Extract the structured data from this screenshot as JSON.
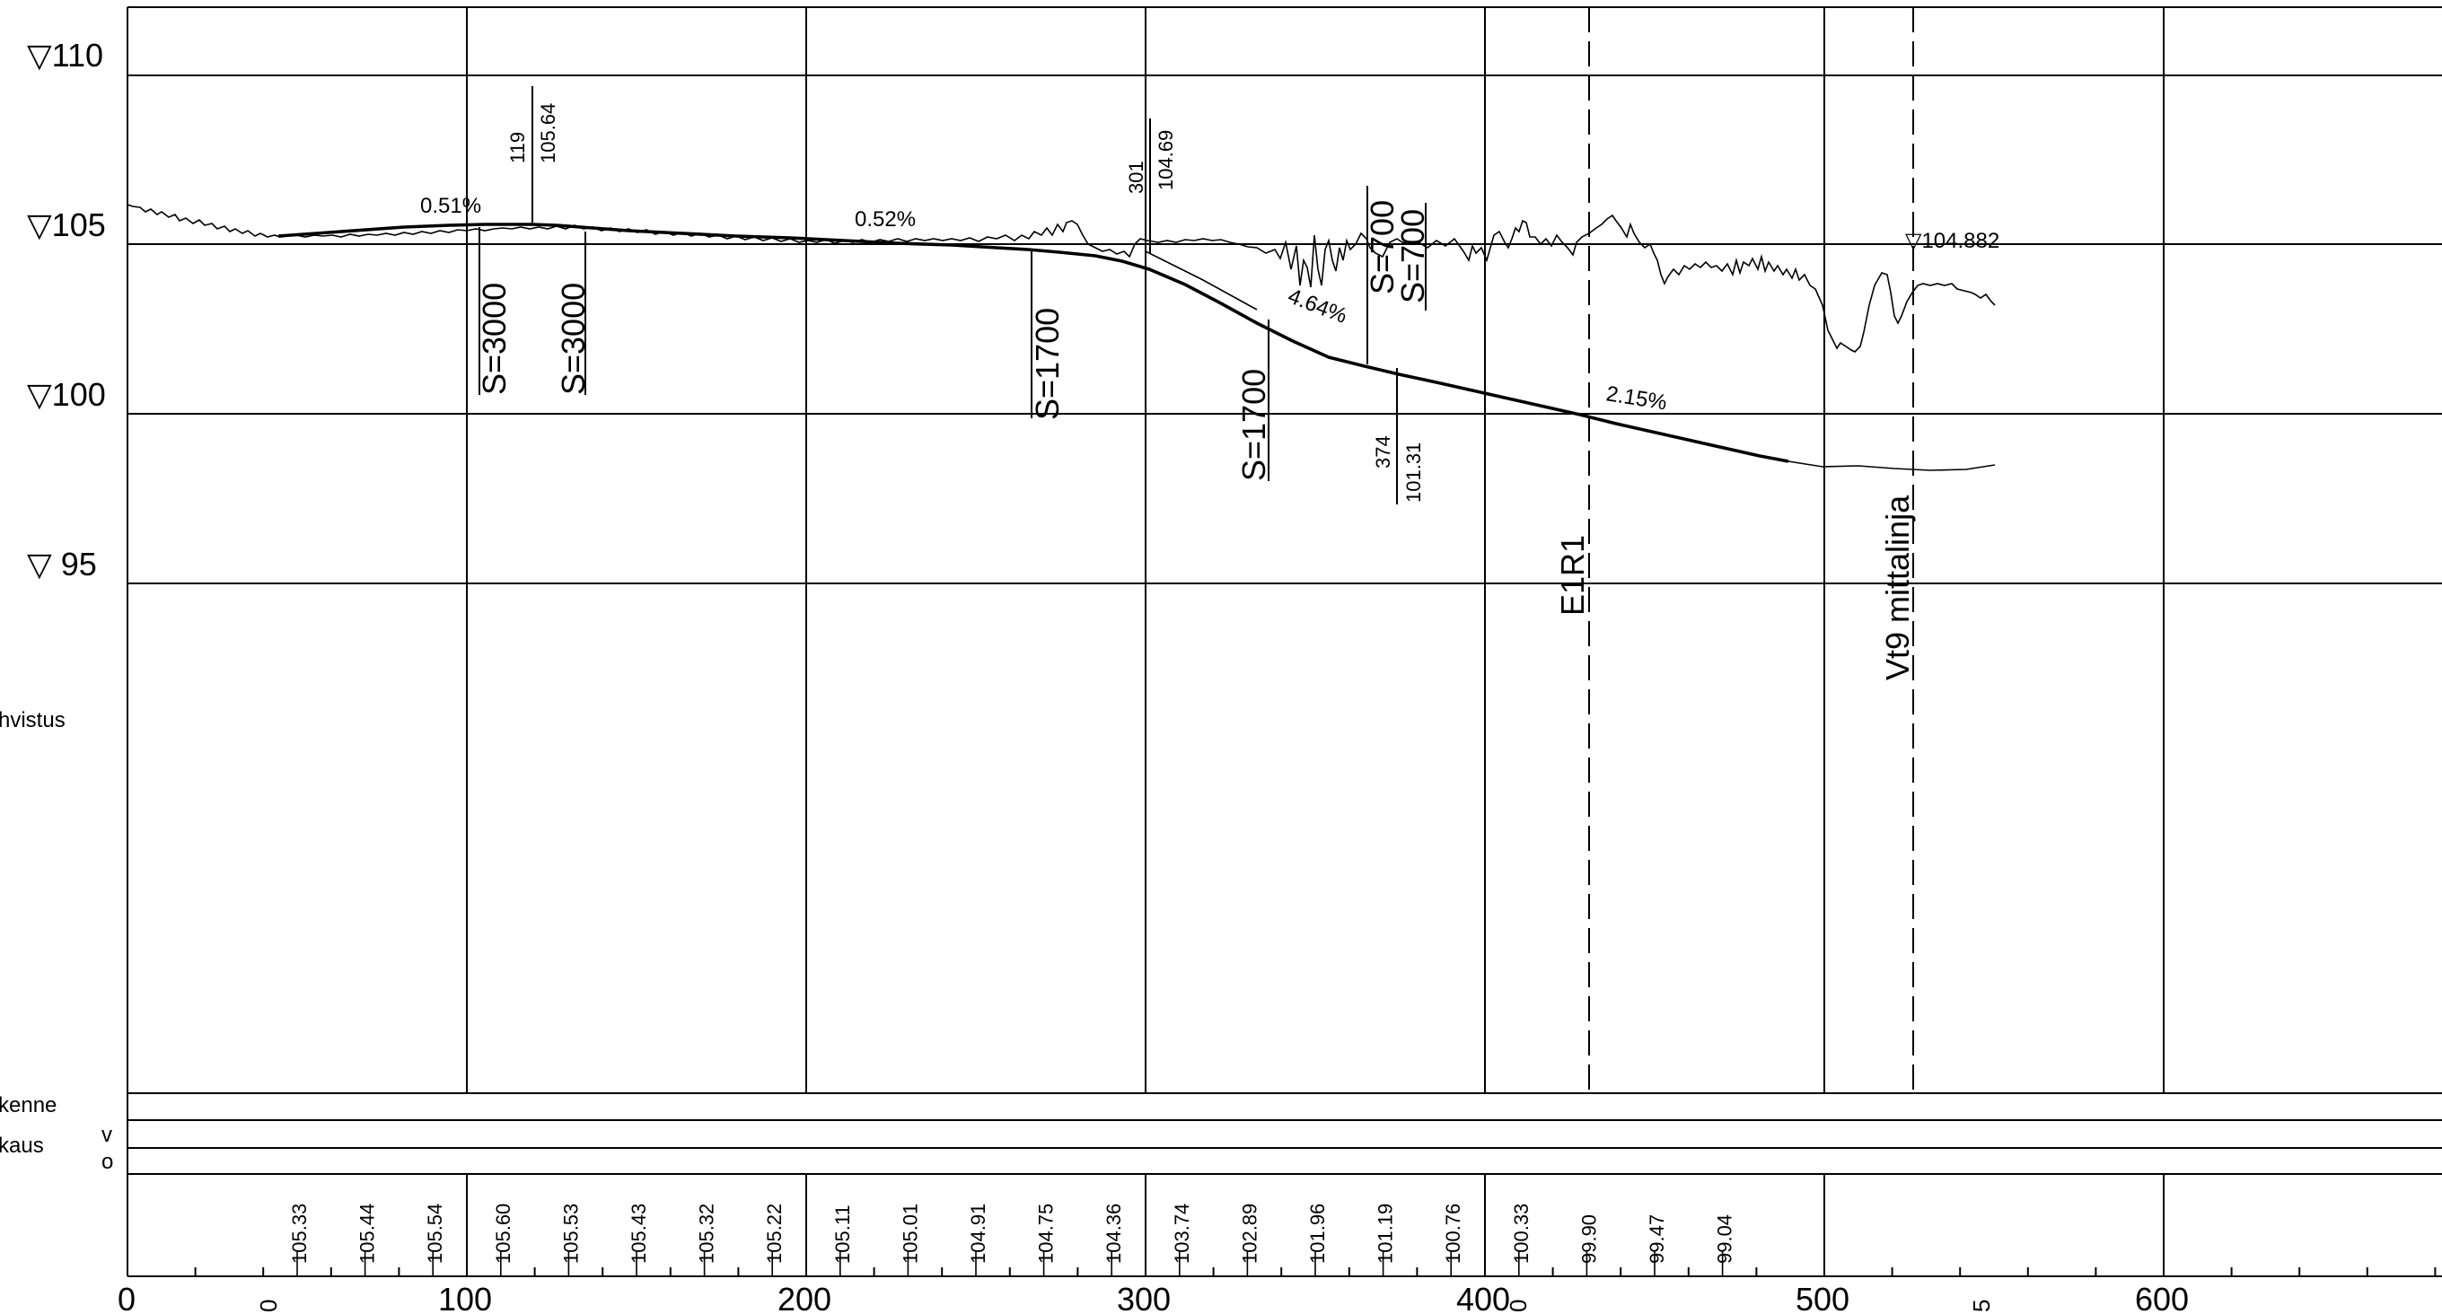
{
  "elevation_axis": {
    "labels": [
      {
        "value": 110,
        "text": "▽110"
      },
      {
        "value": 105,
        "text": "▽105"
      },
      {
        "value": 100,
        "text": "▽100"
      },
      {
        "value": 95,
        "text": "▽  95"
      }
    ]
  },
  "station_axis": {
    "labels": [
      "0",
      "100",
      "200",
      "300",
      "400",
      "500",
      "600"
    ],
    "cut_fragments": [
      "0",
      "0",
      "5"
    ]
  },
  "row_labels": {
    "left_notes": [
      "hvistus",
      "kenne",
      "kaus"
    ],
    "side_letters": [
      "v",
      "o"
    ]
  },
  "grades": [
    "0.51%",
    "0.52%",
    "4.64%",
    "2.15%"
  ],
  "vertical_curves": [
    "S=3000",
    "S=3000",
    "S=1700",
    "S=1700",
    "S=700",
    "S=700"
  ],
  "pvi_labels": [
    {
      "station": "119",
      "elevation": "105.64"
    },
    {
      "station": "301",
      "elevation": "104.69"
    },
    {
      "station": "374",
      "elevation": "101.31"
    }
  ],
  "crossings": [
    {
      "station": 427,
      "label": "E1R1"
    },
    {
      "station": 526,
      "label": "Vt9 mittalinja",
      "elevation_tag": "▽104.882"
    }
  ],
  "grade_elevations": [
    "105.33",
    "105.44",
    "105.54",
    "105.60",
    "105.53",
    "105.43",
    "105.32",
    "105.22",
    "105.11",
    "105.01",
    "104.91",
    "104.75",
    "104.36",
    "103.74",
    "102.89",
    "101.96",
    "101.19",
    "100.76",
    "100.33",
    "99.90",
    "99.47",
    "99.04"
  ],
  "colors": {
    "line": "#000000",
    "background": "#ffffff"
  }
}
